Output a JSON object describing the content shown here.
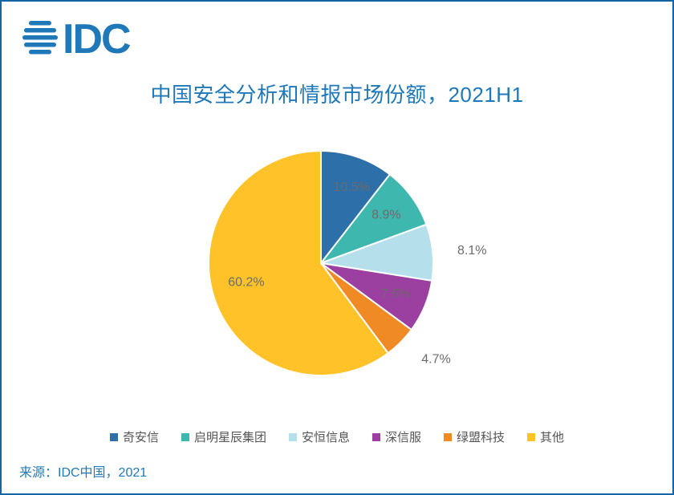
{
  "brand": "IDC",
  "title": "中国安全分析和情报市场份额，2021H1",
  "source": "来源：IDC中国，2021",
  "chart": {
    "type": "pie",
    "background_color": "#ffffff",
    "border_color": "#1565a5",
    "title_color": "#1f78b8",
    "title_fontsize": 26,
    "label_fontsize": 16,
    "label_color": "#6b6b6b",
    "legend_fontsize": 15,
    "slices": [
      {
        "name": "奇安信",
        "value": 10.5,
        "label": "10.5%",
        "color": "#2d6fa8"
      },
      {
        "name": "启明星辰集团",
        "value": 8.9,
        "label": "8.9%",
        "color": "#3eb8ae"
      },
      {
        "name": "安恒信息",
        "value": 8.1,
        "label": "8.1%",
        "color": "#b5e0eb"
      },
      {
        "name": "深信服",
        "value": 7.6,
        "label": "7.6%",
        "color": "#9b3fa1"
      },
      {
        "name": "绿盟科技",
        "value": 4.7,
        "label": "4.7%",
        "color": "#f08a24"
      },
      {
        "name": "其他",
        "value": 60.2,
        "label": "60.2%",
        "color": "#ffc228"
      }
    ]
  }
}
